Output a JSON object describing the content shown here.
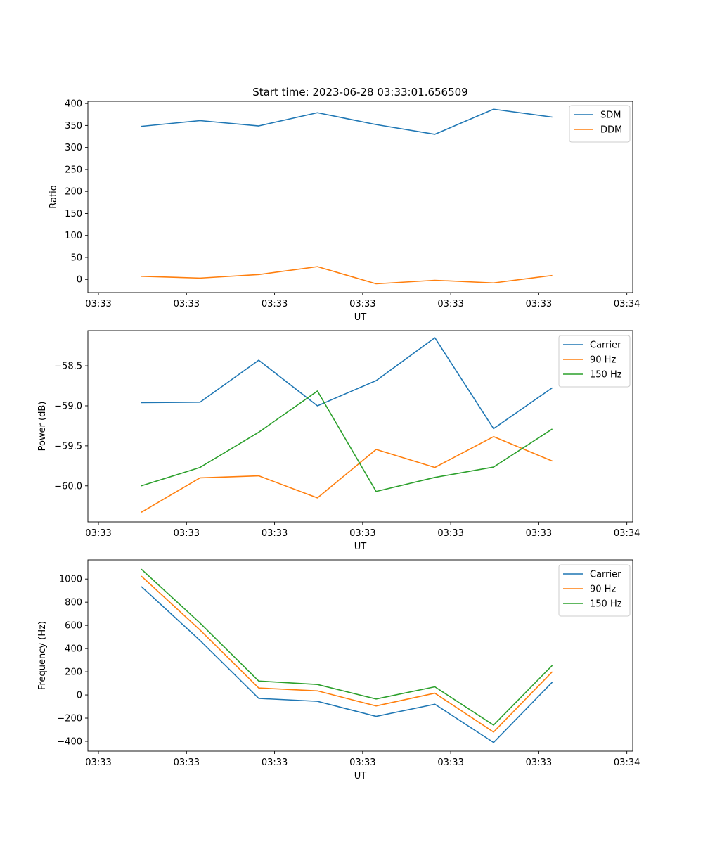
{
  "figure": {
    "title": "Start time: 2023-06-28 03:33:01.656509"
  },
  "chart_data": [
    {
      "type": "line",
      "ylabel": "Ratio",
      "xlabel": "UT",
      "ylim": [
        -30,
        405
      ],
      "yticks": [
        0,
        50,
        100,
        150,
        200,
        250,
        300,
        350,
        400
      ],
      "ytick_labels": [
        "0",
        "50",
        "100",
        "150",
        "200",
        "250",
        "300",
        "350",
        "400"
      ],
      "xlim": [
        -0.18,
        9.1
      ],
      "xticks": [
        0,
        1.5,
        3,
        4.5,
        6,
        7.5,
        9
      ],
      "xtick_labels": [
        "03:33",
        "03:33",
        "03:33",
        "03:33",
        "03:33",
        "03:33",
        "03:34"
      ],
      "x": [
        0.73,
        1.73,
        2.73,
        3.73,
        4.73,
        5.73,
        6.73,
        7.73
      ],
      "legend_position": "top-right",
      "series": [
        {
          "name": "SDM",
          "color": "#1f77b4",
          "values": [
            348,
            361,
            349,
            379,
            352,
            330,
            387,
            369
          ]
        },
        {
          "name": "DDM",
          "color": "#ff7f0e",
          "values": [
            7,
            3,
            11,
            29,
            -10,
            -2,
            -8,
            9
          ]
        }
      ]
    },
    {
      "type": "line",
      "ylabel": "Power (dB)",
      "xlabel": "UT",
      "ylim": [
        -60.45,
        -58.06
      ],
      "yticks": [
        -60.0,
        -59.5,
        -59.0,
        -58.5
      ],
      "ytick_labels": [
        "−60.0",
        "−59.5",
        "−59.0",
        "−58.5"
      ],
      "xlim": [
        -0.18,
        9.1
      ],
      "xticks": [
        0,
        1.5,
        3,
        4.5,
        6,
        7.5,
        9
      ],
      "xtick_labels": [
        "03:33",
        "03:33",
        "03:33",
        "03:33",
        "03:33",
        "03:33",
        "03:34"
      ],
      "x": [
        0.73,
        1.73,
        2.73,
        3.73,
        4.73,
        5.73,
        6.73,
        7.73
      ],
      "legend_position": "top-right",
      "series": [
        {
          "name": "Carrier",
          "color": "#1f77b4",
          "values": [
            -58.96,
            -58.955,
            -58.43,
            -59.0,
            -58.685,
            -58.15,
            -59.285,
            -58.775
          ]
        },
        {
          "name": "90 Hz",
          "color": "#ff7f0e",
          "values": [
            -60.33,
            -59.9,
            -59.875,
            -60.15,
            -59.545,
            -59.77,
            -59.385,
            -59.69
          ]
        },
        {
          "name": "150 Hz",
          "color": "#2ca02c",
          "values": [
            -60.0,
            -59.77,
            -59.33,
            -58.815,
            -60.07,
            -59.895,
            -59.765,
            -59.29
          ]
        }
      ]
    },
    {
      "type": "line",
      "ylabel": "Frequency (Hz)",
      "xlabel": "UT",
      "ylim": [
        -485,
        1165
      ],
      "yticks": [
        -400,
        -200,
        0,
        200,
        400,
        600,
        800,
        1000
      ],
      "ytick_labels": [
        "−400",
        "−200",
        "0",
        "200",
        "400",
        "600",
        "800",
        "1000"
      ],
      "xlim": [
        -0.18,
        9.1
      ],
      "xticks": [
        0,
        1.5,
        3,
        4.5,
        6,
        7.5,
        9
      ],
      "xtick_labels": [
        "03:33",
        "03:33",
        "03:33",
        "03:33",
        "03:33",
        "03:33",
        "03:34"
      ],
      "x": [
        0.73,
        1.73,
        2.73,
        3.73,
        4.73,
        5.73,
        6.73,
        7.73
      ],
      "legend_position": "top-right",
      "series": [
        {
          "name": "Carrier",
          "color": "#1f77b4",
          "values": [
            935,
            470,
            -30,
            -55,
            -185,
            -80,
            -410,
            110
          ]
        },
        {
          "name": "90 Hz",
          "color": "#ff7f0e",
          "values": [
            1025,
            560,
            60,
            35,
            -95,
            15,
            -320,
            200
          ]
        },
        {
          "name": "150 Hz",
          "color": "#2ca02c",
          "values": [
            1085,
            620,
            120,
            90,
            -35,
            70,
            -260,
            255
          ]
        }
      ]
    }
  ]
}
